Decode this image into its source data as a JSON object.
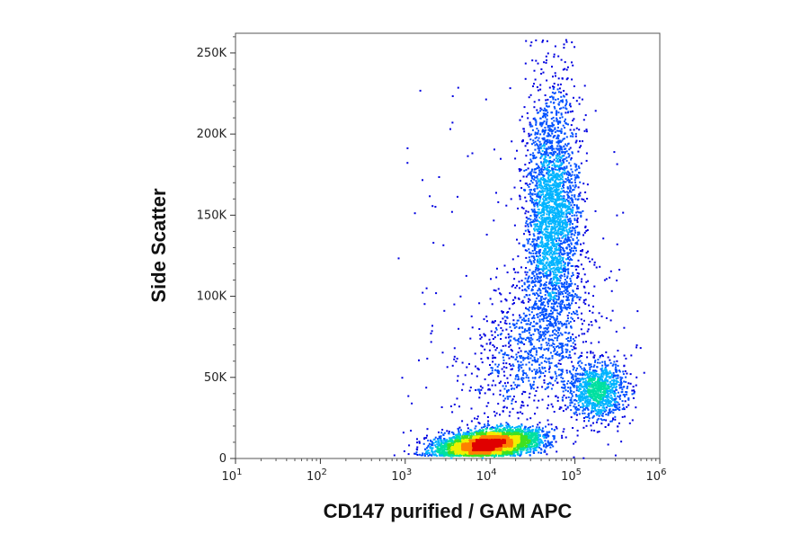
{
  "chart_data": {
    "type": "scatter",
    "plot_style": "density-colored dot plot (flow cytometry)",
    "xlabel": "CD147 purified / GAM APC",
    "ylabel": "Side Scatter",
    "x_scale": "log",
    "xlim": [
      10,
      1000000
    ],
    "x_ticks": [
      {
        "base": "10",
        "exp": "1",
        "value": 10
      },
      {
        "base": "10",
        "exp": "2",
        "value": 100
      },
      {
        "base": "10",
        "exp": "3",
        "value": 1000
      },
      {
        "base": "10",
        "exp": "4",
        "value": 10000
      },
      {
        "base": "10",
        "exp": "5",
        "value": 100000
      },
      {
        "base": "10",
        "exp": "6",
        "value": 1000000
      }
    ],
    "y_scale": "linear",
    "ylim": [
      0,
      262144
    ],
    "y_ticks": [
      {
        "label": "0",
        "value": 0
      },
      {
        "label": "50K",
        "value": 50000
      },
      {
        "label": "100K",
        "value": 100000
      },
      {
        "label": "150K",
        "value": 150000
      },
      {
        "label": "200K",
        "value": 200000
      },
      {
        "label": "250K",
        "value": 250000
      }
    ],
    "grid": false,
    "legend": "none",
    "density_colors": [
      "#0000e0",
      "#0050ff",
      "#00b4ff",
      "#00e0a0",
      "#40e020",
      "#f0f000",
      "#ff8000",
      "#e00000"
    ],
    "populations": [
      {
        "center_x": 9000,
        "center_y": 8000,
        "share": 0.48
      },
      {
        "center_x": 55000,
        "center_y": 150000,
        "share": 0.3
      },
      {
        "center_x": 180000,
        "center_y": 42000,
        "share": 0.12
      },
      {
        "center_x": 30000,
        "center_y": 70000,
        "share": 0.1
      }
    ]
  }
}
